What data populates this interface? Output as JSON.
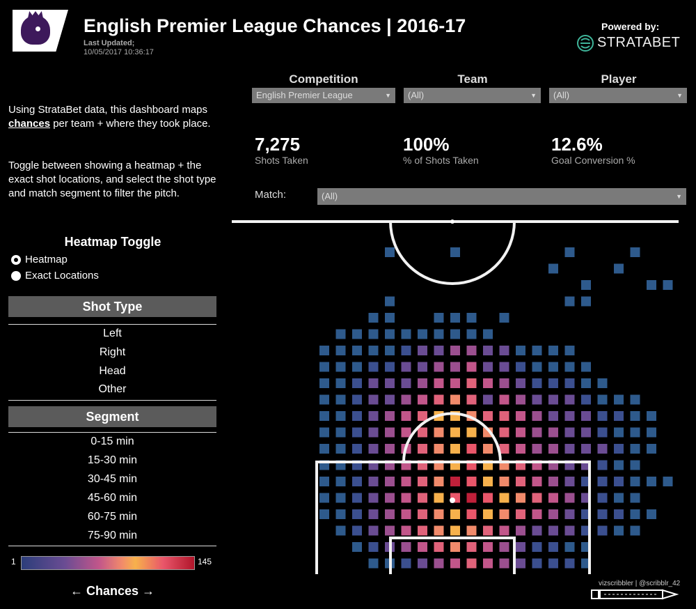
{
  "header": {
    "title": "English Premier League Chances | 2016-17",
    "last_updated_label": "Last Updated;",
    "last_updated_value": "10/05/2017 10:36:17",
    "powered_by": "Powered by:",
    "brand": "STRATABET"
  },
  "intro": {
    "p1_before": "Using StrataBet data, this dashboard maps ",
    "p1_link": "chances",
    "p1_after": " per team + where they took place.",
    "p2": "Toggle between showing a heatmap + the exact shot locations, and select the shot type and match segment to filter the pitch."
  },
  "heatmap_toggle": {
    "title": "Heatmap Toggle",
    "options": [
      "Heatmap",
      "Exact Locations"
    ],
    "selected": "Heatmap"
  },
  "shot_type": {
    "title": "Shot Type",
    "items": [
      "Left",
      "Right",
      "Head",
      "Other"
    ]
  },
  "segment": {
    "title": "Segment",
    "items": [
      "0-15 min",
      "15-30 min",
      "30-45 min",
      "45-60 min",
      "60-75 min",
      "75-90 min"
    ]
  },
  "legend": {
    "min": "1",
    "max": "145",
    "label": "← Chances →"
  },
  "filters": {
    "competition": {
      "label": "Competition",
      "value": "English Premier League"
    },
    "team": {
      "label": "Team",
      "value": "(All)"
    },
    "player": {
      "label": "Player",
      "value": "(All)"
    },
    "match": {
      "label": "Match:",
      "value": "(All)"
    }
  },
  "kpis": [
    {
      "value": "7,275",
      "label": "Shots Taken"
    },
    {
      "value": "100%",
      "label": "% of Shots Taken"
    },
    {
      "value": "12.6%",
      "label": "Goal Conversion %"
    }
  ],
  "colors": {
    "low": "#2c3e7a",
    "mid": "#f7b14c",
    "high": "#b0152a",
    "panel": "#5b5b5b",
    "brand": "#3d195b"
  },
  "credit": "vizscribbler | @scribblr_42",
  "chart_data": {
    "type": "heatmap",
    "scale": {
      "min": 1,
      "max": 145
    },
    "rows": [
      "      .   .      .   .       ",
      "                .   .        ",
      "                  .   ..     ",
      "      .          ..          ",
      "     ..  ... .               ",
      "   ..........                ",
      "  .....1223322....           ",
      "  ...1122334221....          ",
      "  ..12223445432111..         ",
      "  ..122345652432221...  ...  ",
      "  ..12345776554322211..  ..  ",
      "  ..1234567765433221...   .  ",
      "  ..12345678654332221..      ",
      "  ..1234567876543221..  ..   ",
      "  ..12345698765432111...     ",
      "  ..1234578987654321..       ",
      "  ..12345678765432111..      ",
      "   .1234567654322211..       ",
      "    .123456543211..          ",
      "     ..12345432111.          ",
      "      .1234321..             "
    ]
  }
}
